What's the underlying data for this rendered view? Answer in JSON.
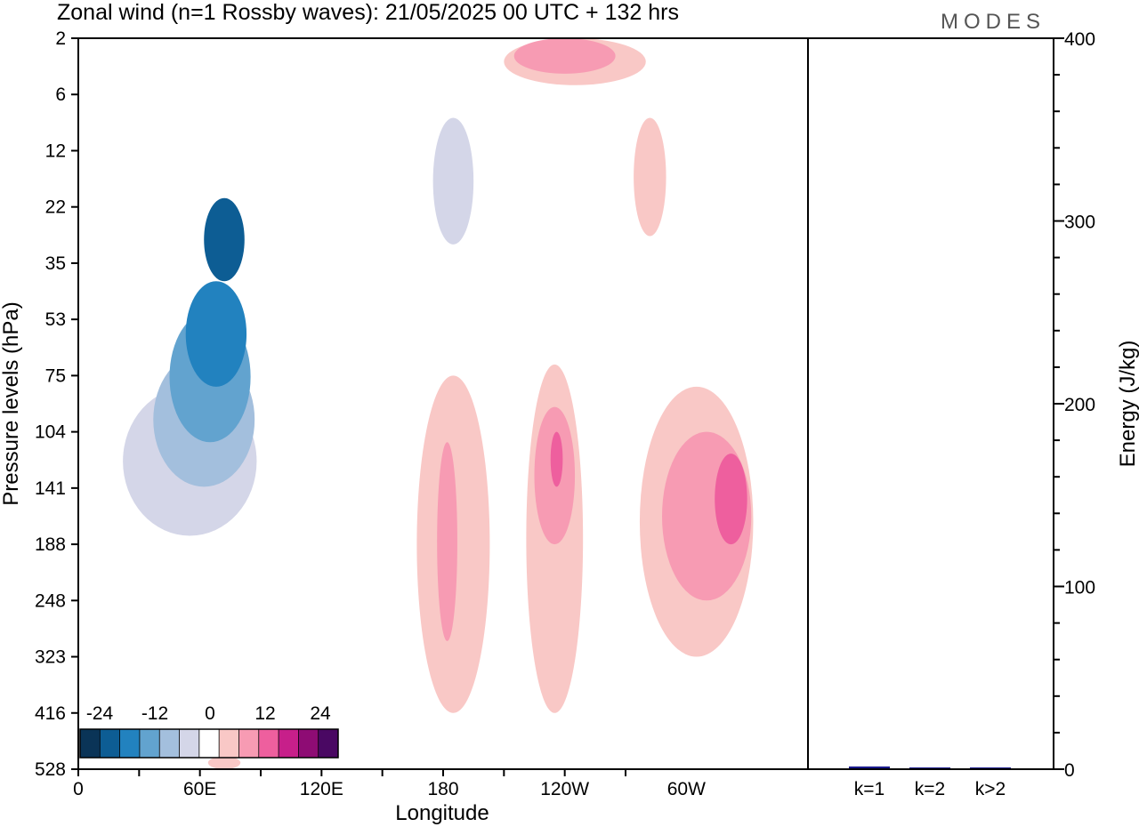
{
  "chart_data": {
    "type": "heatmap",
    "title": "Zonal wind (n=1 Rossby waves):  21/05/2025  00 UTC  + 132 hrs",
    "logo": "MODES",
    "xlabel": "Longitude",
    "ylabel": "Pressure levels (hPa)",
    "y2label": "Energy (J/kg)",
    "x_ticks": [
      "0",
      "60E",
      "120E",
      "180",
      "120W",
      "60W"
    ],
    "x_tick_degrees": [
      0,
      60,
      120,
      180,
      240,
      300
    ],
    "x_range_degrees": [
      0,
      360
    ],
    "y_ticks": [
      "2",
      "6",
      "12",
      "22",
      "35",
      "53",
      "75",
      "104",
      "141",
      "188",
      "248",
      "323",
      "416",
      "528"
    ],
    "y_order": "top-to-bottom",
    "colorbar": {
      "labels": [
        "-24",
        "-12",
        "0",
        "12",
        "24"
      ],
      "levels": [
        -28,
        -24,
        -20,
        -16,
        -12,
        -8,
        -4,
        4,
        8,
        12,
        16,
        20,
        24,
        28
      ],
      "colors": [
        "#0a3457",
        "#0d5d94",
        "#2282bf",
        "#62a3cf",
        "#a3bfdd",
        "#d4d6e8",
        "#ffffff",
        "#f9c8c6",
        "#f79bb3",
        "#ee5f9e",
        "#c71f8a",
        "#8e0c74",
        "#4a0863"
      ]
    },
    "contours": [
      {
        "name": "A",
        "level": -4,
        "color": "#d4d6e8",
        "center": [
          55,
          130
        ],
        "radii": [
          [
            33,
            180
          ],
          [
            22,
            80
          ]
        ]
      },
      {
        "name": "A",
        "level": -8,
        "color": "#a3bfdd",
        "center": [
          62,
          140
        ],
        "radii": [
          [
            25,
            140
          ],
          [
            18,
            65
          ]
        ]
      },
      {
        "name": "A",
        "level": -12,
        "color": "#62a3cf",
        "center": [
          65,
          142
        ],
        "radii": [
          [
            20,
            110
          ],
          [
            12,
            50
          ]
        ]
      },
      {
        "name": "A",
        "level": -16,
        "color": "#2282bf",
        "center": [
          68,
          140
        ],
        "radii": [
          [
            15,
            80
          ],
          [
            9,
            40
          ]
        ]
      },
      {
        "name": "A",
        "level": -20,
        "color": "#0d5d94",
        "center": [
          72,
          130
        ],
        "radii": [
          [
            10,
            40
          ],
          [
            6,
            20
          ]
        ]
      },
      {
        "name": "B",
        "level": -4,
        "color": "#d4d6e8",
        "center": [
          185,
          10
        ],
        "radii": [
          [
            10,
            30
          ],
          [
            6,
            8
          ]
        ]
      },
      {
        "name": "C",
        "level": 4,
        "color": "#f9c8c6",
        "center": [
          185,
          150
        ],
        "radii": [
          [
            18,
            416
          ],
          [
            12,
            75
          ]
        ]
      },
      {
        "name": "C",
        "level": 8,
        "color": "#f79bb3",
        "center": [
          182,
          150
        ],
        "radii": [
          [
            5,
            300
          ],
          [
            4,
            110
          ]
        ]
      },
      {
        "name": "D",
        "level": 4,
        "color": "#f9c8c6",
        "center": [
          235,
          150
        ],
        "radii": [
          [
            14,
            416
          ],
          [
            12,
            70
          ]
        ]
      },
      {
        "name": "D",
        "level": 8,
        "color": "#f79bb3",
        "center": [
          235,
          140
        ],
        "radii": [
          [
            10,
            188
          ],
          [
            10,
            90
          ]
        ]
      },
      {
        "name": "D",
        "level": 12,
        "color": "#ee5f9e",
        "center": [
          236,
          115
        ],
        "radii": [
          [
            3,
            140
          ],
          [
            3,
            104
          ]
        ]
      },
      {
        "name": "E",
        "level": 4,
        "color": "#f9c8c6",
        "center": [
          305,
          150
        ],
        "radii": [
          [
            28,
            323
          ],
          [
            20,
            80
          ]
        ]
      },
      {
        "name": "E",
        "level": 8,
        "color": "#f79bb3",
        "center": [
          310,
          145
        ],
        "radii": [
          [
            22,
            248
          ],
          [
            18,
            104
          ]
        ]
      },
      {
        "name": "E",
        "level": 12,
        "color": "#ee5f9e",
        "center": [
          322,
          145
        ],
        "radii": [
          [
            8,
            188
          ],
          [
            5,
            117
          ]
        ]
      },
      {
        "name": "F",
        "level": 4,
        "color": "#f9c8c6",
        "center": [
          245,
          3
        ],
        "radii": [
          [
            35,
            5
          ],
          [
            14,
            2
          ]
        ]
      },
      {
        "name": "F",
        "level": 8,
        "color": "#f79bb3",
        "center": [
          240,
          2
        ],
        "radii": [
          [
            25,
            4
          ],
          [
            10,
            2
          ]
        ]
      },
      {
        "name": "G",
        "level": 4,
        "color": "#f9c8c6",
        "center": [
          282,
          15
        ],
        "radii": [
          [
            8,
            28
          ],
          [
            8,
            8
          ]
        ]
      },
      {
        "name": "H",
        "level": 4,
        "color": "#f9c8c6",
        "center": [
          72,
          528
        ],
        "radii": [
          [
            8,
            528
          ],
          [
            6,
            500
          ]
        ]
      }
    ],
    "energy_bars": {
      "y_range": [
        0,
        400
      ],
      "y_ticks": [
        0,
        100,
        200,
        300,
        400
      ],
      "categories": [
        "k=1",
        "k=2",
        "k>2"
      ],
      "values": [
        1.5,
        0.4,
        0.6
      ],
      "color": "#1a1a8c"
    }
  }
}
